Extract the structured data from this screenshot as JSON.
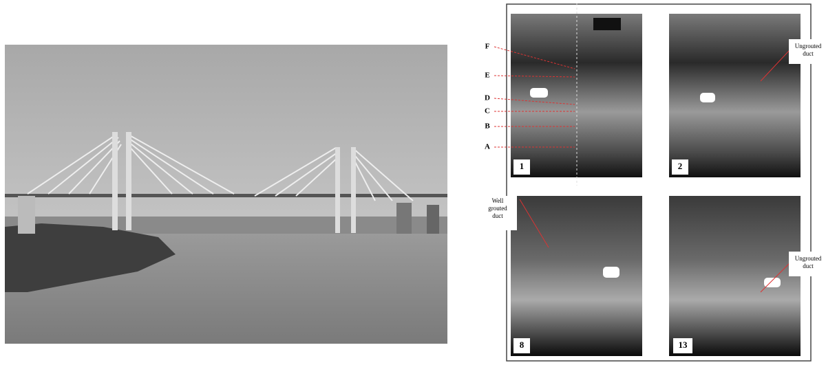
{
  "photo_figure": {
    "depth_labels": [
      "F",
      "E",
      "D",
      "C",
      "B",
      "A"
    ],
    "panels": [
      {
        "number": "1"
      },
      {
        "number": "2"
      },
      {
        "number": "8"
      },
      {
        "number": "13"
      }
    ],
    "annotations": [
      {
        "text": "Ungrouted duct"
      },
      {
        "text": "Well grouted duct"
      },
      {
        "text": "Ungrouted duct"
      }
    ]
  }
}
